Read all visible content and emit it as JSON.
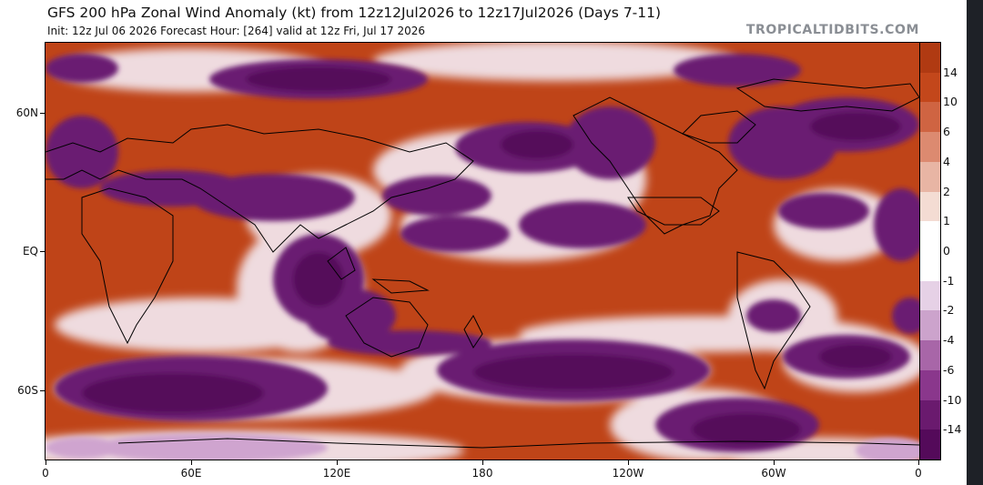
{
  "title": "GFS 200 hPa Zonal Wind Anomaly (kt) from 12z12Jul2026 to 12z17Jul2026 (Days 7-11)",
  "subtitle": "Init: 12z Jul 06 2026   Forecast Hour: [264]   valid at 12z Fri, Jul 17 2026",
  "watermark": "TROPICALTIDBITS.COM",
  "map": {
    "lat_labels": [
      "60N",
      "EQ",
      "60S"
    ],
    "lon_labels": [
      "0",
      "60E",
      "120E",
      "180",
      "120W",
      "60W",
      "0"
    ]
  },
  "colorbar": {
    "labels": [
      "14",
      "10",
      "6",
      "4",
      "2",
      "1",
      "0",
      "-1",
      "-2",
      "-4",
      "-6",
      "-10",
      "-14"
    ],
    "colors": [
      "#b03a12",
      "#c3471b",
      "#cf6442",
      "#dc8a70",
      "#e8b5a4",
      "#f4dcd3",
      "#ffffff",
      "#ffffff",
      "#e6d1e6",
      "#cca3cc",
      "#a866a8",
      "#8a378c",
      "#6a1a6e",
      "#540a5a"
    ]
  },
  "colors": {
    "positive": "#bf4418",
    "negative": "#6b1f72",
    "border": "#1e2127"
  }
}
